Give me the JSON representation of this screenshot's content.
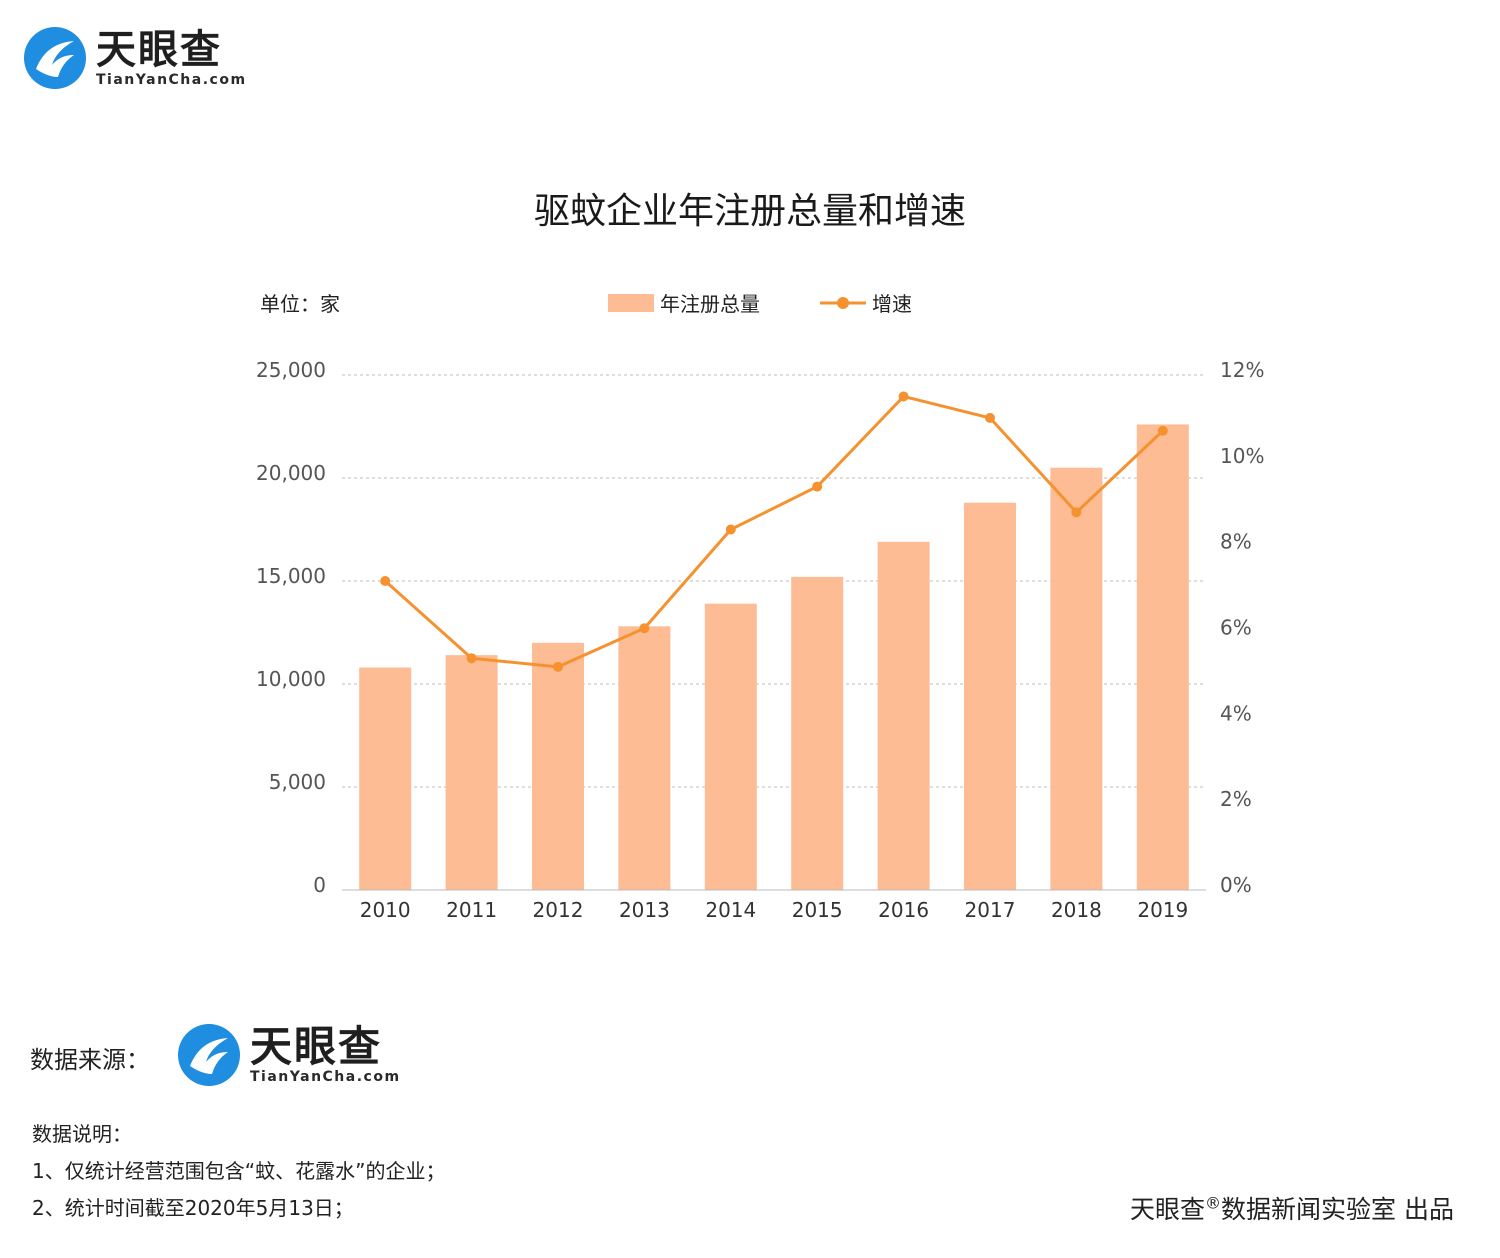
{
  "brand": {
    "name_cn": "天眼查",
    "name_en": "TianYanCha.com",
    "color_blue": "#1f8de0",
    "color_dark": "#1f1f1f"
  },
  "chart_data": {
    "type": "bar",
    "title": "驱蚊企业年注册总量和增速",
    "unit": "单位：家",
    "categories": [
      "2010",
      "2011",
      "2012",
      "2013",
      "2014",
      "2015",
      "2016",
      "2017",
      "2018",
      "2019"
    ],
    "series": [
      {
        "name": "年注册总量",
        "type": "bar",
        "axis": "left",
        "color": "#fdbc94",
        "values": [
          10800,
          11400,
          12000,
          12800,
          13900,
          15200,
          16900,
          18800,
          20500,
          22600
        ]
      },
      {
        "name": "增速",
        "type": "line",
        "axis": "right",
        "color": "#f5922f",
        "values": [
          7.2,
          5.4,
          5.2,
          6.1,
          8.4,
          9.4,
          11.5,
          11.0,
          8.8,
          10.7
        ]
      }
    ],
    "y_left": {
      "min": 0,
      "max": 25000,
      "ticks": [
        0,
        5000,
        10000,
        15000,
        20000,
        25000
      ],
      "tick_labels": [
        "0",
        "5,000",
        "10,000",
        "15,000",
        "20,000",
        "25,000"
      ]
    },
    "y_right": {
      "min": 0,
      "max": 12,
      "ticks": [
        0,
        2,
        4,
        6,
        8,
        10,
        12
      ],
      "tick_labels": [
        "0%",
        "2%",
        "4%",
        "6%",
        "8%",
        "10%",
        "12%"
      ]
    },
    "grid": true,
    "legend_placement": "top-center"
  },
  "footer": {
    "source_label": "数据来源：",
    "notes_title": "数据说明：",
    "notes": [
      "1、仅统计经营范围包含“蚊、花露水”的企业；",
      "2、统计时间截至2020年5月13日；"
    ],
    "credit_before": "天眼查",
    "credit_reg": "®",
    "credit_after": "数据新闻实验室 出品"
  }
}
